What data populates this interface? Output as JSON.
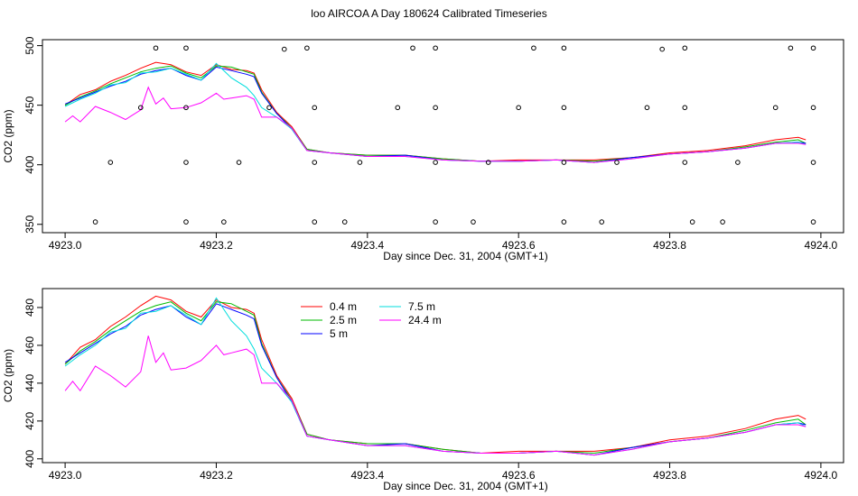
{
  "title": "loo AIRCOA A  Day 180624  Calibrated Timeseries",
  "chart_data": [
    {
      "type": "scatter",
      "xlabel": "Day since Dec. 31, 2004 (GMT+1)",
      "ylabel": "CO2 (ppm)",
      "xlim": [
        4922.97,
        4924.03
      ],
      "ylim": [
        343,
        505
      ],
      "x_ticks": [
        "4923.0",
        "4923.2",
        "4923.4",
        "4923.6",
        "4923.8",
        "4924.0"
      ],
      "y_ticks": [
        "350",
        "400",
        "450",
        "500"
      ],
      "legend": "none",
      "colors": {
        "0.4 m": "#ff0000",
        "2.5 m": "#00bb00",
        "5 m": "#0000ff",
        "7.5 m": "#00dddd",
        "24.4 m": "#ff00ff",
        "calibration": "#000000"
      },
      "series": [
        {
          "x": [
            4923.0,
            4923.02,
            4923.04,
            4923.06,
            4923.08,
            4923.1,
            4923.12,
            4923.14,
            4923.16,
            4923.18,
            4923.2,
            4923.22,
            4923.24,
            4923.25,
            4923.26,
            4923.28,
            4923.3,
            4923.32,
            4923.35,
            4923.4,
            4923.45,
            4923.5,
            4923.55,
            4923.6,
            4923.65,
            4923.7,
            4923.75,
            4923.8,
            4923.85,
            4923.9,
            4923.94,
            4923.97,
            4923.98
          ],
          "y": [
            450,
            459,
            463,
            470,
            475,
            481,
            486,
            484,
            478,
            475,
            484,
            480,
            479,
            477,
            463,
            444,
            432,
            413,
            410,
            408,
            408,
            405,
            403,
            404,
            404,
            404,
            406,
            410,
            412,
            416,
            421,
            423,
            421
          ]
        },
        {
          "x": [
            4923.0,
            4923.02,
            4923.04,
            4923.06,
            4923.08,
            4923.1,
            4923.12,
            4923.14,
            4923.16,
            4923.18,
            4923.2,
            4923.22,
            4923.24,
            4923.25,
            4923.26,
            4923.28,
            4923.3,
            4923.32,
            4923.35,
            4923.4,
            4923.45,
            4923.5,
            4923.55,
            4923.6,
            4923.65,
            4923.7,
            4923.75,
            4923.8,
            4923.85,
            4923.9,
            4923.94,
            4923.97,
            4923.98
          ],
          "y": [
            450,
            457,
            462,
            468,
            473,
            478,
            481,
            483,
            477,
            473,
            483,
            482,
            478,
            476,
            461,
            443,
            431,
            413,
            410,
            408,
            408,
            405,
            403,
            403,
            404,
            403,
            406,
            409,
            411,
            415,
            419,
            421,
            418
          ]
        },
        {
          "x": [
            4923.0,
            4923.02,
            4923.04,
            4923.06,
            4923.08,
            4923.1,
            4923.12,
            4923.14,
            4923.16,
            4923.18,
            4923.2,
            4923.22,
            4923.24,
            4923.25,
            4923.26,
            4923.28,
            4923.3,
            4923.32,
            4923.35,
            4923.4,
            4923.45,
            4923.5,
            4923.55,
            4923.6,
            4923.65,
            4923.7,
            4923.75,
            4923.8,
            4923.85,
            4923.9,
            4923.94,
            4923.97,
            4923.98
          ],
          "y": [
            451,
            456,
            461,
            466,
            470,
            476,
            479,
            481,
            475,
            471,
            482,
            479,
            476,
            474,
            460,
            443,
            430,
            412,
            410,
            407,
            408,
            404,
            403,
            403,
            404,
            402,
            406,
            409,
            411,
            414,
            418,
            419,
            418
          ]
        },
        {
          "x": [
            4923.0,
            4923.02,
            4923.04,
            4923.06,
            4923.08,
            4923.1,
            4923.12,
            4923.14,
            4923.16,
            4923.18,
            4923.2,
            4923.22,
            4923.24,
            4923.25,
            4923.26,
            4923.28,
            4923.3,
            4923.32,
            4923.35,
            4923.4,
            4923.45,
            4923.5,
            4923.55,
            4923.6,
            4923.65,
            4923.7,
            4923.75,
            4923.8,
            4923.85,
            4923.9,
            4923.94,
            4923.97,
            4923.98
          ],
          "y": [
            449,
            455,
            460,
            467,
            469,
            477,
            478,
            481,
            476,
            471,
            485,
            473,
            465,
            458,
            448,
            440,
            430,
            412,
            410,
            407,
            407,
            404,
            403,
            403,
            404,
            402,
            405,
            409,
            411,
            414,
            418,
            419,
            417
          ]
        },
        {
          "x": [
            4923.0,
            4923.01,
            4923.02,
            4923.04,
            4923.06,
            4923.08,
            4923.1,
            4923.11,
            4923.12,
            4923.13,
            4923.14,
            4923.16,
            4923.18,
            4923.2,
            4923.21,
            4923.22,
            4923.24,
            4923.25,
            4923.26,
            4923.28,
            4923.3,
            4923.32,
            4923.35,
            4923.4,
            4923.45,
            4923.5,
            4923.55,
            4923.6,
            4923.65,
            4923.7,
            4923.75,
            4923.8,
            4923.85,
            4923.9,
            4923.94,
            4923.97,
            4923.98
          ],
          "y": [
            436,
            441,
            436,
            449,
            444,
            438,
            446,
            465,
            451,
            456,
            447,
            448,
            452,
            460,
            455,
            456,
            458,
            455,
            440,
            440,
            431,
            412,
            410,
            407,
            407,
            404,
            403,
            403,
            404,
            402,
            405,
            409,
            411,
            414,
            418,
            418,
            417
          ]
        }
      ],
      "calibration_points": {
        "x": [
          4923.04,
          4923.06,
          4923.1,
          4923.12,
          4923.16,
          4923.16,
          4923.16,
          4923.16,
          4923.21,
          4923.23,
          4923.27,
          4923.29,
          4923.32,
          4923.33,
          4923.33,
          4923.33,
          4923.37,
          4923.39,
          4923.44,
          4923.46,
          4923.49,
          4923.49,
          4923.49,
          4923.49,
          4923.54,
          4923.56,
          4923.6,
          4923.62,
          4923.66,
          4923.66,
          4923.66,
          4923.66,
          4923.71,
          4923.73,
          4923.77,
          4923.79,
          4923.82,
          4923.82,
          4923.82,
          4923.83,
          4923.87,
          4923.89,
          4923.94,
          4923.96,
          4923.99,
          4923.99,
          4923.99,
          4923.99
        ],
        "y": [
          352,
          402,
          448,
          498,
          352,
          402,
          448,
          498,
          352,
          402,
          448,
          497,
          498,
          448,
          402,
          352,
          352,
          402,
          448,
          498,
          352,
          402,
          448,
          498,
          352,
          402,
          448,
          498,
          498,
          448,
          402,
          352,
          352,
          402,
          448,
          497,
          498,
          448,
          402,
          352,
          352,
          402,
          448,
          498,
          498,
          448,
          402,
          352
        ]
      }
    },
    {
      "type": "line",
      "xlabel": "Day since Dec. 31, 2004 (GMT+1)",
      "ylabel": "CO2 (ppm)",
      "xlim": [
        4922.97,
        4924.03
      ],
      "ylim": [
        398,
        490
      ],
      "x_ticks": [
        "4923.0",
        "4923.2",
        "4923.4",
        "4923.6",
        "4923.8",
        "4924.0"
      ],
      "y_ticks": [
        "400",
        "420",
        "440",
        "460",
        "480"
      ],
      "legend": "top-left",
      "series": [
        {
          "name": "0.4 m",
          "color": "#ff0000",
          "x": [
            4923.0,
            4923.02,
            4923.04,
            4923.06,
            4923.08,
            4923.1,
            4923.12,
            4923.14,
            4923.16,
            4923.18,
            4923.2,
            4923.22,
            4923.24,
            4923.25,
            4923.26,
            4923.28,
            4923.3,
            4923.32,
            4923.35,
            4923.4,
            4923.45,
            4923.5,
            4923.55,
            4923.6,
            4923.65,
            4923.7,
            4923.75,
            4923.8,
            4923.85,
            4923.9,
            4923.94,
            4923.97,
            4923.98
          ],
          "y": [
            450,
            459,
            463,
            470,
            475,
            481,
            486,
            484,
            478,
            475,
            484,
            480,
            479,
            477,
            463,
            444,
            432,
            413,
            410,
            408,
            408,
            405,
            403,
            404,
            404,
            404,
            406,
            410,
            412,
            416,
            421,
            423,
            421
          ]
        },
        {
          "name": "2.5 m",
          "color": "#00bb00",
          "x": [
            4923.0,
            4923.02,
            4923.04,
            4923.06,
            4923.08,
            4923.1,
            4923.12,
            4923.14,
            4923.16,
            4923.18,
            4923.2,
            4923.22,
            4923.24,
            4923.25,
            4923.26,
            4923.28,
            4923.3,
            4923.32,
            4923.35,
            4923.4,
            4923.45,
            4923.5,
            4923.55,
            4923.6,
            4923.65,
            4923.7,
            4923.75,
            4923.8,
            4923.85,
            4923.9,
            4923.94,
            4923.97,
            4923.98
          ],
          "y": [
            450,
            457,
            462,
            468,
            473,
            478,
            481,
            483,
            477,
            473,
            483,
            482,
            478,
            476,
            461,
            443,
            431,
            413,
            410,
            408,
            408,
            405,
            403,
            403,
            404,
            403,
            406,
            409,
            411,
            415,
            419,
            421,
            418
          ]
        },
        {
          "name": "5 m",
          "color": "#0000ff",
          "x": [
            4923.0,
            4923.02,
            4923.04,
            4923.06,
            4923.08,
            4923.1,
            4923.12,
            4923.14,
            4923.16,
            4923.18,
            4923.2,
            4923.22,
            4923.24,
            4923.25,
            4923.26,
            4923.28,
            4923.3,
            4923.32,
            4923.35,
            4923.4,
            4923.45,
            4923.5,
            4923.55,
            4923.6,
            4923.65,
            4923.7,
            4923.75,
            4923.8,
            4923.85,
            4923.9,
            4923.94,
            4923.97,
            4923.98
          ],
          "y": [
            451,
            456,
            461,
            466,
            470,
            476,
            479,
            481,
            475,
            471,
            482,
            479,
            476,
            474,
            460,
            443,
            430,
            412,
            410,
            407,
            408,
            404,
            403,
            403,
            404,
            402,
            406,
            409,
            411,
            414,
            418,
            419,
            418
          ]
        },
        {
          "name": "7.5 m",
          "color": "#00dddd",
          "x": [
            4923.0,
            4923.02,
            4923.04,
            4923.06,
            4923.08,
            4923.1,
            4923.12,
            4923.14,
            4923.16,
            4923.18,
            4923.2,
            4923.22,
            4923.24,
            4923.25,
            4923.26,
            4923.28,
            4923.3,
            4923.32,
            4923.35,
            4923.4,
            4923.45,
            4923.5,
            4923.55,
            4923.6,
            4923.65,
            4923.7,
            4923.75,
            4923.8,
            4923.85,
            4923.9,
            4923.94,
            4923.97,
            4923.98
          ],
          "y": [
            449,
            455,
            460,
            467,
            469,
            477,
            478,
            481,
            476,
            471,
            485,
            473,
            465,
            458,
            448,
            440,
            430,
            412,
            410,
            407,
            407,
            404,
            403,
            403,
            404,
            402,
            405,
            409,
            411,
            414,
            418,
            419,
            417
          ]
        },
        {
          "name": "24.4 m",
          "color": "#ff00ff",
          "x": [
            4923.0,
            4923.01,
            4923.02,
            4923.04,
            4923.06,
            4923.08,
            4923.1,
            4923.11,
            4923.12,
            4923.13,
            4923.14,
            4923.16,
            4923.18,
            4923.2,
            4923.21,
            4923.22,
            4923.24,
            4923.25,
            4923.26,
            4923.28,
            4923.3,
            4923.32,
            4923.35,
            4923.4,
            4923.45,
            4923.5,
            4923.55,
            4923.6,
            4923.65,
            4923.7,
            4923.75,
            4923.8,
            4923.85,
            4923.9,
            4923.94,
            4923.97,
            4923.98
          ],
          "y": [
            436,
            441,
            436,
            449,
            444,
            438,
            446,
            465,
            451,
            456,
            447,
            448,
            452,
            460,
            455,
            456,
            458,
            455,
            440,
            440,
            431,
            412,
            410,
            407,
            407,
            404,
            403,
            403,
            404,
            402,
            405,
            409,
            411,
            414,
            418,
            418,
            417
          ]
        }
      ]
    }
  ]
}
